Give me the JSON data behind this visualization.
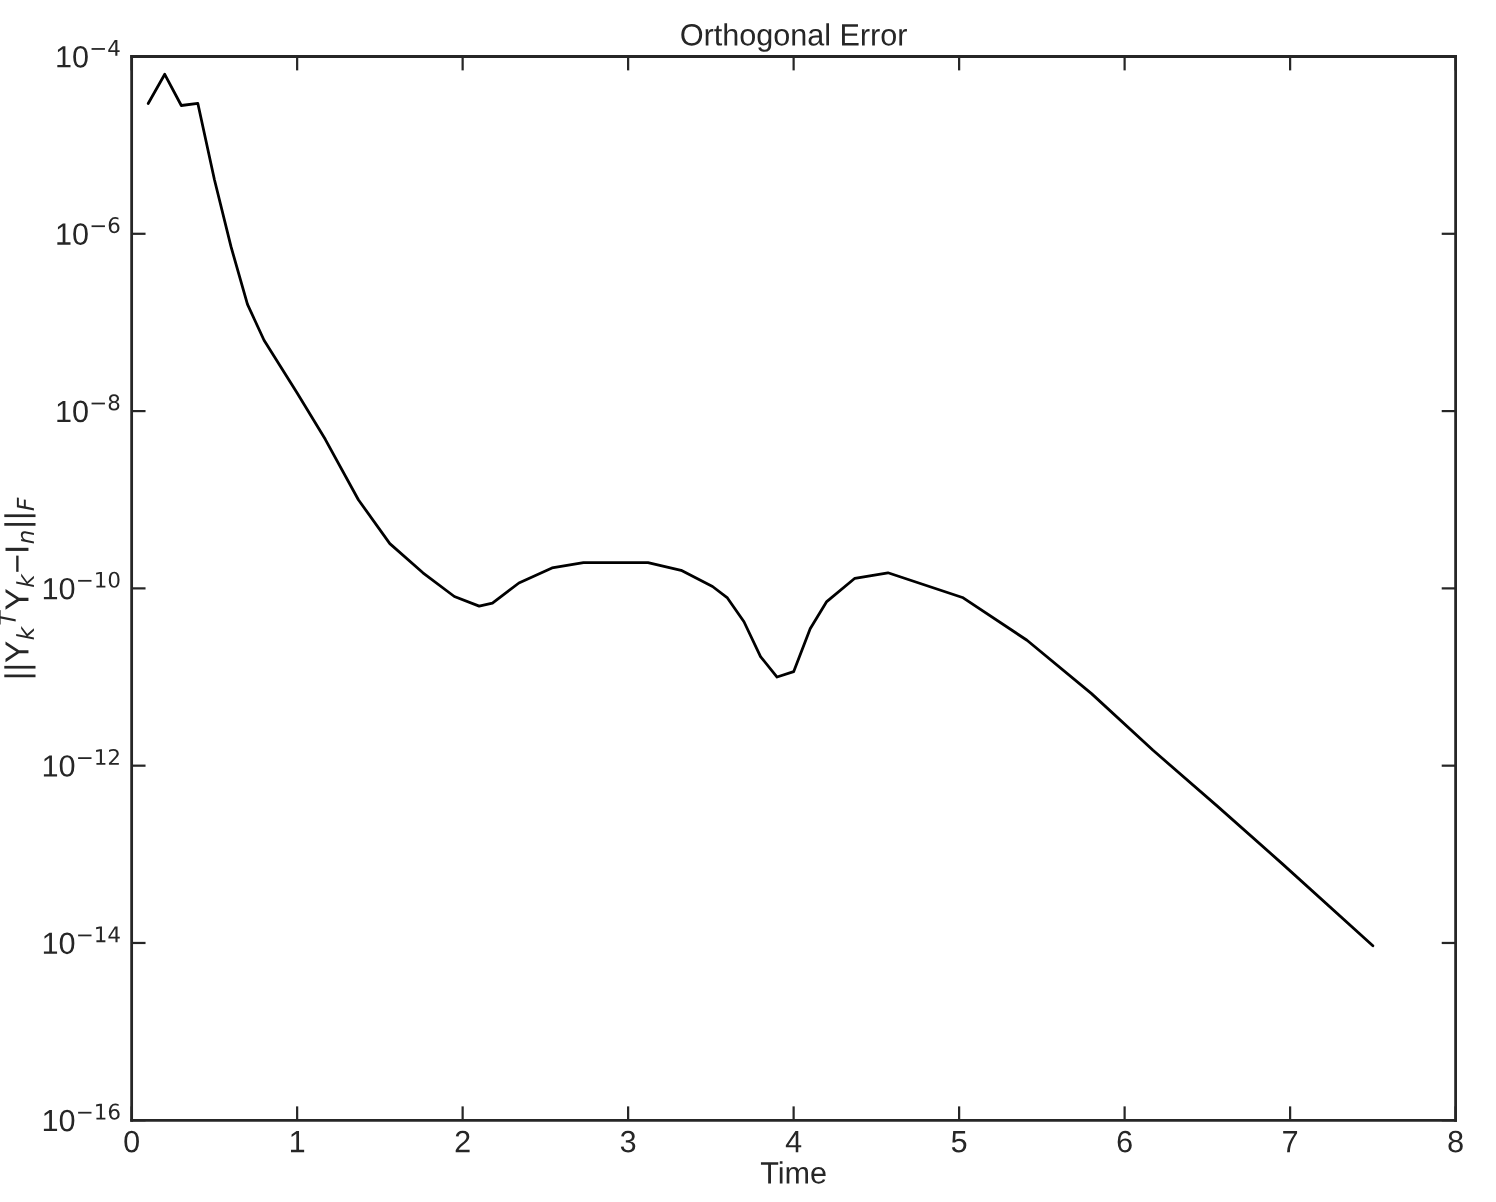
{
  "chart_data": {
    "type": "line",
    "title": "Orthogonal Error",
    "xlabel": "Time",
    "ylabel": "||Y$_{k}$$^{T}$Y$_{k}$−I$_{n}$||$_{F}$",
    "log": "y",
    "grid": false,
    "marker": "none",
    "line_style": "solid",
    "xlim": [
      0,
      8
    ],
    "xticks": [
      0,
      1,
      2,
      3,
      4,
      5,
      6,
      7,
      8
    ],
    "ylim": [
      1e-16,
      0.0001
    ],
    "yticks": [
      {
        "value": 1e-16,
        "label": "10$^{−16}$"
      },
      {
        "value": 1e-14,
        "label": "10$^{−14}$"
      },
      {
        "value": 1e-12,
        "label": "10$^{−12}$"
      },
      {
        "value": 1e-10,
        "label": "10$^{−10}$"
      },
      {
        "value": 1e-08,
        "label": "10$^{−8}$"
      },
      {
        "value": 1e-06,
        "label": "10$^{−6}$"
      },
      {
        "value": 0.0001,
        "label": "10$^{−4}$"
      }
    ],
    "x": [
      0.1,
      0.2,
      0.3,
      0.4,
      0.5,
      0.6,
      0.7,
      0.8,
      1.0,
      1.17,
      1.37,
      1.56,
      1.76,
      1.95,
      2.1,
      2.18,
      2.34,
      2.54,
      2.73,
      3.12,
      3.32,
      3.51,
      3.6,
      3.7,
      3.8,
      3.9,
      4.0,
      4.1,
      4.2,
      4.37,
      4.57,
      5.02,
      5.41,
      5.8,
      6.17,
      6.56,
      6.95,
      7.5
    ],
    "series": [
      {
        "color": "#000000",
        "values": [
          2.95e-05,
          6.3e-05,
          2.8e-05,
          2.95e-05,
          4.1e-06,
          7.2e-07,
          1.6e-07,
          6.3e-08,
          1.6e-08,
          4.8e-09,
          1e-09,
          3.2e-10,
          1.5e-10,
          8.1e-11,
          6.3e-11,
          6.8e-11,
          1.15e-10,
          1.7e-10,
          1.95e-10,
          1.95e-10,
          1.6e-10,
          1.05e-10,
          7.8e-11,
          4.2e-11,
          1.7e-11,
          1e-11,
          1.15e-11,
          3.5e-11,
          7.1e-11,
          1.3e-10,
          1.5e-10,
          7.9e-11,
          2.6e-11,
          6.5e-12,
          1.5e-12,
          3.5e-13,
          7.9e-14,
          9.3e-15
        ]
      }
    ]
  }
}
